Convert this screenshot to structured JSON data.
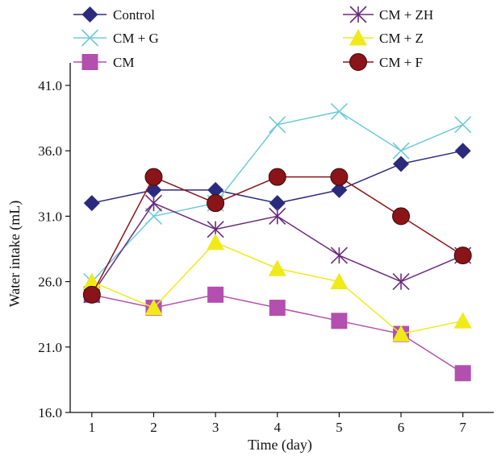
{
  "chart_data": {
    "type": "line",
    "xlabel": "Time (day)",
    "ylabel": "Water intake (mL)",
    "x": [
      1,
      2,
      3,
      4,
      5,
      6,
      7
    ],
    "xlim": [
      0.65,
      7.5
    ],
    "ylim": [
      16.0,
      41.0
    ],
    "yticks": [
      "16.0",
      "21.0",
      "26.0",
      "31.0",
      "36.0",
      "41.0"
    ],
    "xticks": [
      "1",
      "2",
      "3",
      "4",
      "5",
      "6",
      "7"
    ],
    "legend_placement": "top",
    "series": [
      {
        "name": "Control",
        "marker": "diamond",
        "color": "#2b2a7c",
        "values": [
          32,
          33,
          33,
          32,
          33,
          35,
          36
        ]
      },
      {
        "name": "CM + G",
        "marker": "x",
        "color": "#6ecbd8",
        "values": [
          26,
          31,
          32,
          38,
          39,
          36,
          38
        ]
      },
      {
        "name": "CM",
        "marker": "square",
        "color": "#b34fae",
        "values": [
          25,
          24,
          25,
          24,
          23,
          22,
          19
        ]
      },
      {
        "name": "CM + ZH",
        "marker": "asterisk",
        "color": "#6a2b7c",
        "values": [
          25,
          32,
          30,
          31,
          28,
          26,
          28
        ]
      },
      {
        "name": "CM + Z",
        "marker": "triangle",
        "color": "#f0ea1a",
        "values": [
          26,
          24,
          29,
          27,
          26,
          22,
          23
        ]
      },
      {
        "name": "CM + F",
        "marker": "circle",
        "color": "#8a1418",
        "values": [
          25,
          34,
          32,
          34,
          34,
          31,
          28
        ]
      }
    ]
  }
}
